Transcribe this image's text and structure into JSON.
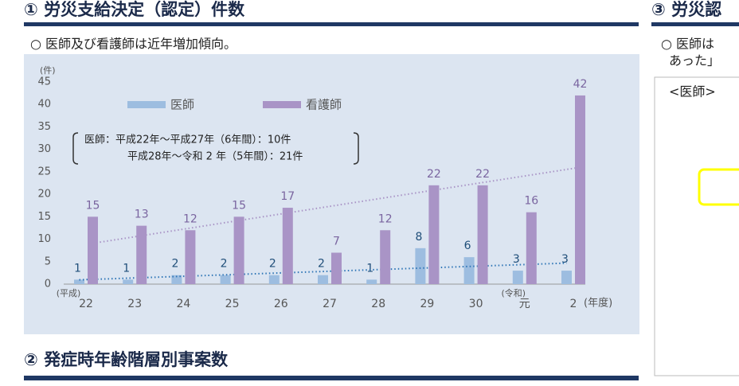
{
  "headings": {
    "section1": "① 労災支給決定（認定）件数",
    "section1_note": "○ 医師及び看護師は近年増加傾向。",
    "section2": "② 発症時年齢階層別事案数",
    "section3": "③ 労災認"
  },
  "right_panel": {
    "lines": [
      "○ 医師は",
      "あった」"
    ],
    "box_label": "<医師>"
  },
  "chart_data": {
    "type": "bar",
    "y_label": "(件)",
    "x_label": "(年度)",
    "era_labels": [
      "(平成)",
      "(令和)"
    ],
    "categories": [
      "22",
      "23",
      "24",
      "25",
      "26",
      "27",
      "28",
      "29",
      "30",
      "元",
      "2"
    ],
    "series": [
      {
        "name": "医師",
        "color": "#9dbde0",
        "label_color": "#1f4e79",
        "trend_color": "#2e75b6",
        "values": [
          1,
          1,
          2,
          2,
          2,
          2,
          1,
          8,
          6,
          3,
          3
        ]
      },
      {
        "name": "看護師",
        "color": "#a994c6",
        "label_color": "#7a65a0",
        "trend_color": "#a994c6",
        "values": [
          15,
          13,
          12,
          15,
          17,
          7,
          12,
          22,
          22,
          16,
          42
        ]
      }
    ],
    "annotations": [
      "医師：平成22年～平成27年（6年間）：10件",
      "平成28年～令和 2 年（5年間）：21件"
    ],
    "ylim": [
      0,
      45
    ],
    "yticks": [
      0,
      5,
      10,
      15,
      20,
      25,
      30,
      35,
      40,
      45
    ],
    "grid": false,
    "trendline": true,
    "legend": "top-left"
  }
}
